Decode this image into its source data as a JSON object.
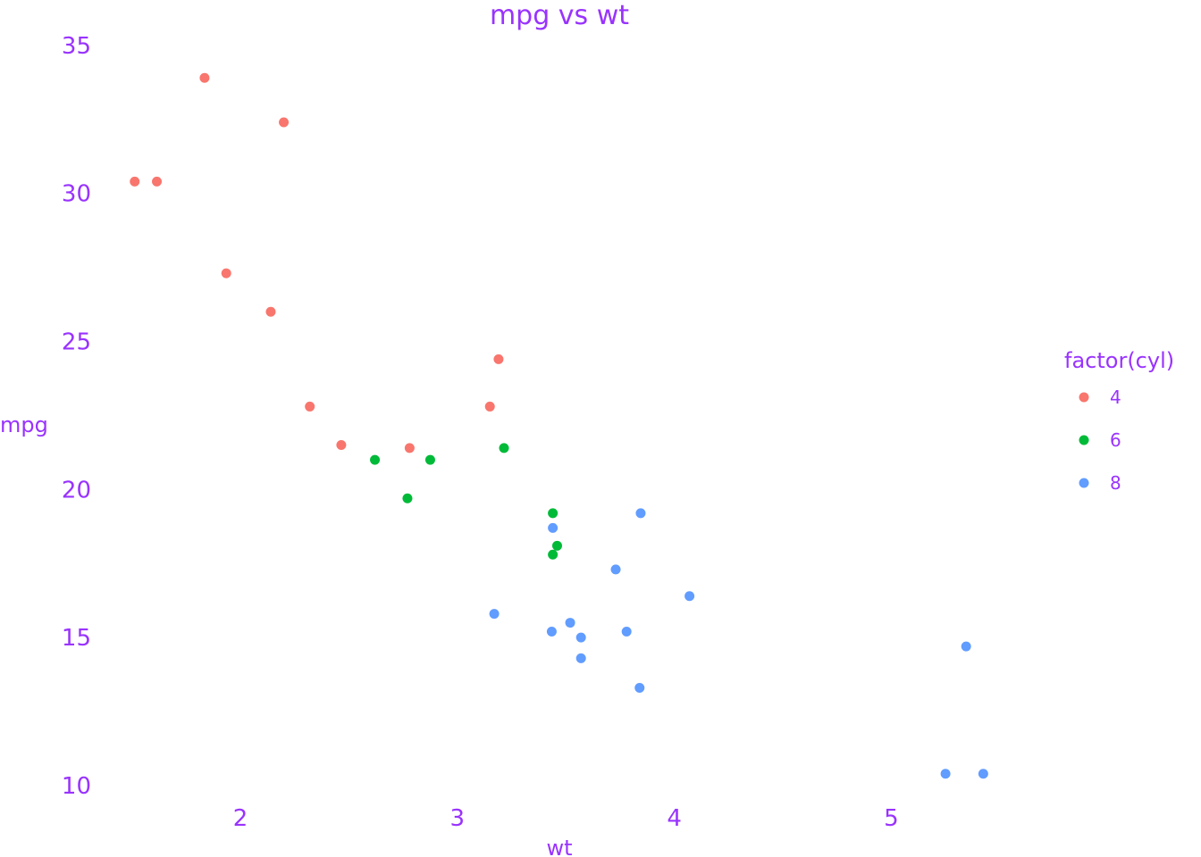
{
  "chart_data": {
    "type": "scatter",
    "title": "mpg vs wt",
    "xlabel": "wt",
    "ylabel": "mpg",
    "xlim": [
      1.5,
      5.4
    ],
    "ylim": [
      10.4,
      33.9
    ],
    "x_ticks": [
      2,
      3,
      4,
      5
    ],
    "y_ticks": [
      10,
      15,
      20,
      25,
      30,
      35
    ],
    "grid": false,
    "legend": {
      "title": "factor(cyl)",
      "position": "right"
    },
    "text_color": "#9933ff",
    "series": [
      {
        "name": "4",
        "color": "#f8766d",
        "points": [
          {
            "x": 2.32,
            "y": 22.8
          },
          {
            "x": 3.19,
            "y": 24.4
          },
          {
            "x": 3.15,
            "y": 22.8
          },
          {
            "x": 2.2,
            "y": 32.4
          },
          {
            "x": 1.615,
            "y": 30.4
          },
          {
            "x": 1.835,
            "y": 33.9
          },
          {
            "x": 2.465,
            "y": 21.5
          },
          {
            "x": 1.935,
            "y": 27.3
          },
          {
            "x": 2.14,
            "y": 26.0
          },
          {
            "x": 1.513,
            "y": 30.4
          },
          {
            "x": 2.78,
            "y": 21.4
          }
        ]
      },
      {
        "name": "6",
        "color": "#00ba38",
        "points": [
          {
            "x": 2.62,
            "y": 21.0
          },
          {
            "x": 2.875,
            "y": 21.0
          },
          {
            "x": 3.215,
            "y": 21.4
          },
          {
            "x": 3.46,
            "y": 18.1
          },
          {
            "x": 3.44,
            "y": 19.2
          },
          {
            "x": 3.44,
            "y": 17.8
          },
          {
            "x": 2.77,
            "y": 19.7
          }
        ]
      },
      {
        "name": "8",
        "color": "#619cff",
        "points": [
          {
            "x": 3.44,
            "y": 18.7
          },
          {
            "x": 3.57,
            "y": 14.3
          },
          {
            "x": 4.07,
            "y": 16.4
          },
          {
            "x": 3.73,
            "y": 17.3
          },
          {
            "x": 3.78,
            "y": 15.2
          },
          {
            "x": 5.25,
            "y": 10.4
          },
          {
            "x": 5.424,
            "y": 10.4
          },
          {
            "x": 5.345,
            "y": 14.7
          },
          {
            "x": 3.52,
            "y": 15.5
          },
          {
            "x": 3.435,
            "y": 15.2
          },
          {
            "x": 3.84,
            "y": 13.3
          },
          {
            "x": 3.845,
            "y": 19.2
          },
          {
            "x": 3.17,
            "y": 15.8
          },
          {
            "x": 3.57,
            "y": 15.0
          }
        ]
      }
    ]
  }
}
